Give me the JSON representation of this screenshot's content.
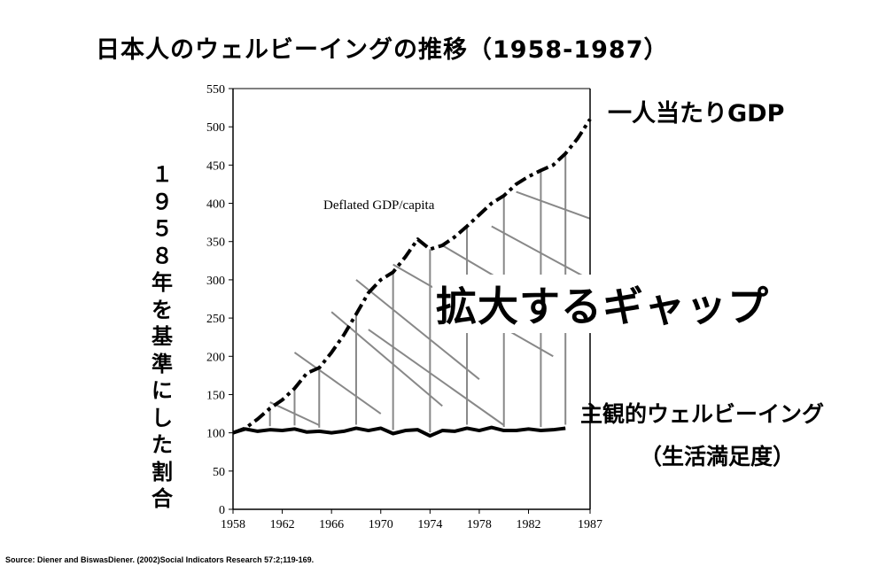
{
  "chart_data": {
    "type": "line",
    "title": "日本人のウェルビーイングの推移（1958-1987）",
    "ylabel": "１９５８年を基準にした割合",
    "xlabel": "",
    "xlim": [
      1958,
      1987
    ],
    "ylim": [
      0,
      550
    ],
    "x_ticks": [
      "1958",
      "1962",
      "1966",
      "1970",
      "1974",
      "1978",
      "1982",
      "1987"
    ],
    "y_ticks": [
      "0",
      "50",
      "100",
      "150",
      "200",
      "250",
      "300",
      "350",
      "400",
      "450",
      "500",
      "550"
    ],
    "annotation_inner": "Deflated GDP/capita",
    "gap_label": "拡大するギャップ",
    "series": [
      {
        "name": "一人当たりGDP",
        "style": "dash-dot",
        "x": [
          1958,
          1959,
          1960,
          1961,
          1962,
          1963,
          1964,
          1965,
          1966,
          1967,
          1968,
          1969,
          1970,
          1971,
          1972,
          1973,
          1974,
          1975,
          1976,
          1977,
          1978,
          1979,
          1980,
          1981,
          1982,
          1983,
          1984,
          1985,
          1986,
          1987
        ],
        "values": [
          100,
          106,
          118,
          132,
          143,
          158,
          178,
          185,
          205,
          228,
          255,
          283,
          300,
          310,
          330,
          353,
          340,
          345,
          356,
          370,
          385,
          400,
          410,
          425,
          435,
          443,
          450,
          465,
          485,
          510
        ]
      },
      {
        "name": "主観的ウェルビーイング",
        "style": "solid",
        "x": [
          1958,
          1959,
          1960,
          1961,
          1962,
          1963,
          1964,
          1965,
          1966,
          1967,
          1968,
          1969,
          1970,
          1971,
          1972,
          1973,
          1974,
          1975,
          1976,
          1977,
          1978,
          1979,
          1980,
          1981,
          1982,
          1983,
          1984,
          1985
        ],
        "values": [
          100,
          105,
          102,
          104,
          103,
          105,
          101,
          102,
          100,
          102,
          106,
          103,
          106,
          99,
          103,
          104,
          96,
          103,
          102,
          106,
          103,
          107,
          103,
          103,
          105,
          103,
          104,
          106
        ]
      }
    ],
    "side_labels": {
      "gdp": "一人当たりGDP",
      "swb_line1": "主観的ウェルビーイング",
      "swb_line2": "（生活満足度）"
    }
  },
  "source": "Source: Diener and BiswasDiener. (2002)Social Indicators Research 57:2;119-169."
}
